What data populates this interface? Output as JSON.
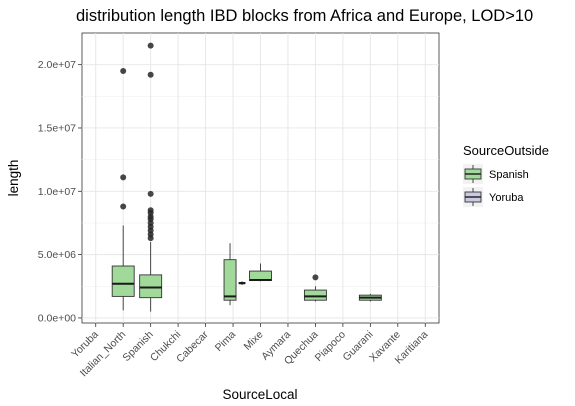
{
  "chart_data": {
    "type": "boxplot",
    "title": "distribution length IBD blocks from Africa and Europe, LOD>10",
    "xlabel": "SourceLocal",
    "ylabel": "length",
    "ylim": [
      -400000,
      22500000
    ],
    "yticks": [
      0,
      5000000,
      10000000,
      15000000,
      20000000
    ],
    "ytick_labels": [
      "0.0e+00",
      "5.0e+06",
      "1.0e+07",
      "1.5e+07",
      "2.0e+07"
    ],
    "categories": [
      "Yoruba",
      "Italian_North",
      "Spanish",
      "Chukchi",
      "Cabecar",
      "Pima",
      "Mixe",
      "Aymara",
      "Quechua",
      "Piapoco",
      "Guarani",
      "Xavante",
      "Karitiana"
    ],
    "grid": true,
    "legend": {
      "title": "SourceOutside",
      "position": "right",
      "entries": [
        {
          "name": "Spanish",
          "color": "#a1d99b"
        },
        {
          "name": "Yoruba",
          "color": "#cbc9e2"
        }
      ]
    },
    "series": [
      {
        "name": "Spanish",
        "color": "#a1d99b",
        "boxes": [
          {
            "category": "Italian_North",
            "whisker_low": 600000,
            "q1": 1700000,
            "median": 2700000,
            "q3": 4100000,
            "whisker_high": 7300000,
            "outliers": [
              8800000,
              11100000,
              19500000
            ]
          },
          {
            "category": "Spanish",
            "whisker_low": 500000,
            "q1": 1600000,
            "median": 2400000,
            "q3": 3400000,
            "whisker_high": 6000000,
            "outliers": [
              6300000,
              6600000,
              6900000,
              7200000,
              7500000,
              7800000,
              8000000,
              8300000,
              8500000,
              9800000,
              19200000,
              21500000
            ]
          },
          {
            "category": "Pima",
            "whisker_low": 1000000,
            "q1": 1400000,
            "median": 1700000,
            "q3": 4600000,
            "whisker_high": 5900000,
            "outliers": []
          },
          {
            "category": "Pima",
            "sub": true,
            "whisker_low": 2600000,
            "q1": 2700000,
            "median": 2750000,
            "q3": 2800000,
            "whisker_high": 2900000,
            "outliers": []
          },
          {
            "category": "Mixe",
            "whisker_low": 2900000,
            "q1": 2950000,
            "median": 3000000,
            "q3": 3700000,
            "whisker_high": 4300000,
            "outliers": []
          },
          {
            "category": "Quechua",
            "whisker_low": 1300000,
            "q1": 1400000,
            "median": 1700000,
            "q3": 2200000,
            "whisker_high": 2500000,
            "outliers": [
              3200000
            ]
          },
          {
            "category": "Guarani",
            "whisker_low": 1300000,
            "q1": 1400000,
            "median": 1600000,
            "q3": 1800000,
            "whisker_high": 1900000,
            "outliers": []
          }
        ]
      },
      {
        "name": "Yoruba",
        "color": "#cbc9e2",
        "boxes": []
      }
    ]
  }
}
